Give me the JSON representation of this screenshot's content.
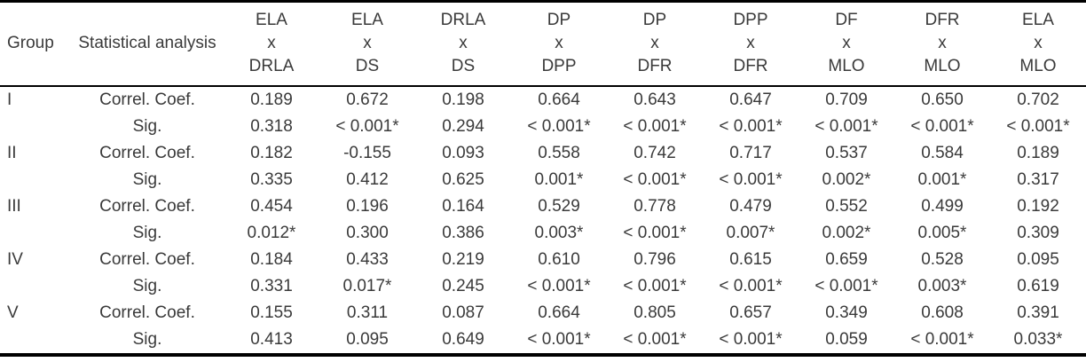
{
  "table": {
    "headers": {
      "group": "Group",
      "statistical_analysis": "Statistical analysis"
    },
    "pairs": [
      {
        "top": "ELA",
        "mid": "x",
        "bottom": "DRLA"
      },
      {
        "top": "ELA",
        "mid": "x",
        "bottom": "DS"
      },
      {
        "top": "DRLA",
        "mid": "x",
        "bottom": "DS"
      },
      {
        "top": "DP",
        "mid": "x",
        "bottom": "DPP"
      },
      {
        "top": "DP",
        "mid": "x",
        "bottom": "DFR"
      },
      {
        "top": "DPP",
        "mid": "x",
        "bottom": "DFR"
      },
      {
        "top": "DF",
        "mid": "x",
        "bottom": "MLO"
      },
      {
        "top": "DFR",
        "mid": "x",
        "bottom": "MLO"
      },
      {
        "top": "ELA",
        "mid": "x",
        "bottom": "MLO"
      }
    ],
    "groups": [
      {
        "name": "I",
        "rows": [
          {
            "label": "Correl. Coef.",
            "values": [
              "0.189",
              "0.672",
              "0.198",
              "0.664",
              "0.643",
              "0.647",
              "0.709",
              "0.650",
              "0.702"
            ]
          },
          {
            "label": "Sig.",
            "values": [
              "0.318",
              "< 0.001*",
              "0.294",
              "< 0.001*",
              "< 0.001*",
              "< 0.001*",
              "< 0.001*",
              "< 0.001*",
              "< 0.001*"
            ]
          }
        ]
      },
      {
        "name": "II",
        "rows": [
          {
            "label": "Correl. Coef.",
            "values": [
              "0.182",
              "-0.155",
              "0.093",
              "0.558",
              "0.742",
              "0.717",
              "0.537",
              "0.584",
              "0.189"
            ]
          },
          {
            "label": "Sig.",
            "values": [
              "0.335",
              "0.412",
              "0.625",
              "0.001*",
              "< 0.001*",
              "< 0.001*",
              "0.002*",
              "0.001*",
              "0.317"
            ]
          }
        ]
      },
      {
        "name": "III",
        "rows": [
          {
            "label": "Correl. Coef.",
            "values": [
              "0.454",
              "0.196",
              "0.164",
              "0.529",
              "0.778",
              "0.479",
              "0.552",
              "0.499",
              "0.192"
            ]
          },
          {
            "label": "Sig.",
            "values": [
              "0.012*",
              "0.300",
              "0.386",
              "0.003*",
              "< 0.001*",
              "0.007*",
              "0.002*",
              "0.005*",
              "0.309"
            ]
          }
        ]
      },
      {
        "name": "IV",
        "rows": [
          {
            "label": "Correl. Coef.",
            "values": [
              "0.184",
              "0.433",
              "0.219",
              "0.610",
              "0.796",
              "0.615",
              "0.659",
              "0.528",
              "0.095"
            ]
          },
          {
            "label": "Sig.",
            "values": [
              "0.331",
              "0.017*",
              "0.245",
              "< 0.001*",
              "< 0.001*",
              "< 0.001*",
              "< 0.001*",
              "0.003*",
              "0.619"
            ]
          }
        ]
      },
      {
        "name": "V",
        "rows": [
          {
            "label": "Correl. Coef.",
            "values": [
              "0.155",
              "0.311",
              "0.087",
              "0.664",
              "0.805",
              "0.657",
              "0.349",
              "0.608",
              "0.391"
            ]
          },
          {
            "label": "Sig.",
            "values": [
              "0.413",
              "0.095",
              "0.649",
              "< 0.001*",
              "< 0.001*",
              "< 0.001*",
              "0.059",
              "< 0.001*",
              "0.033*"
            ]
          }
        ]
      }
    ]
  },
  "colors": {
    "text": "#3a3a3a",
    "rule": "#000000",
    "background": "#ffffff"
  }
}
